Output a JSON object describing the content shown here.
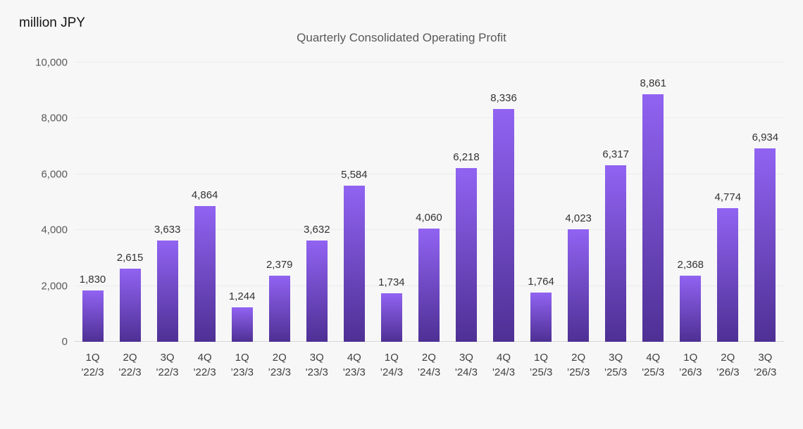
{
  "unit_label": "million JPY",
  "chart_data": {
    "type": "bar",
    "title": "Quarterly Consolidated Operating Profit",
    "ylabel": "million JPY",
    "xlabel": "",
    "ylim": [
      0,
      10000
    ],
    "ytick_interval": 2000,
    "yticks": [
      {
        "value": 0,
        "label": "0"
      },
      {
        "value": 2000,
        "label": "2,000"
      },
      {
        "value": 4000,
        "label": "4,000"
      },
      {
        "value": 6000,
        "label": "6,000"
      },
      {
        "value": 8000,
        "label": "8,000"
      },
      {
        "value": 10000,
        "label": "10,000"
      }
    ],
    "grid": "horizontal",
    "legend": "none",
    "bars": [
      {
        "quarter": "1Q",
        "year": "'22/3",
        "value": 1830,
        "label": "1,830"
      },
      {
        "quarter": "2Q",
        "year": "'22/3",
        "value": 2615,
        "label": "2,615"
      },
      {
        "quarter": "3Q",
        "year": "'22/3",
        "value": 3633,
        "label": "3,633"
      },
      {
        "quarter": "4Q",
        "year": "'22/3",
        "value": 4864,
        "label": "4,864"
      },
      {
        "quarter": "1Q",
        "year": "’23/3",
        "value": 1244,
        "label": "1,244"
      },
      {
        "quarter": "2Q",
        "year": "’23/3",
        "value": 2379,
        "label": "2,379"
      },
      {
        "quarter": "3Q",
        "year": "'23/3",
        "value": 3632,
        "label": "3,632"
      },
      {
        "quarter": "4Q",
        "year": "'23/3",
        "value": 5584,
        "label": "5,584"
      },
      {
        "quarter": "1Q",
        "year": "’24/3",
        "value": 1734,
        "label": "1,734"
      },
      {
        "quarter": "2Q",
        "year": "’24/3",
        "value": 4060,
        "label": "4,060"
      },
      {
        "quarter": "3Q",
        "year": "'24/3",
        "value": 6218,
        "label": "6,218"
      },
      {
        "quarter": "4Q",
        "year": "'24/3",
        "value": 8336,
        "label": "8,336"
      },
      {
        "quarter": "1Q",
        "year": "’25/3",
        "value": 1764,
        "label": "1,764"
      },
      {
        "quarter": "2Q",
        "year": "’25/3",
        "value": 4023,
        "label": "4,023"
      },
      {
        "quarter": "3Q",
        "year": "'25/3",
        "value": 6317,
        "label": "6,317"
      },
      {
        "quarter": "4Q",
        "year": "'25/3",
        "value": 8861,
        "label": "8,861"
      },
      {
        "quarter": "1Q",
        "year": "’26/3",
        "value": 2368,
        "label": "2,368"
      },
      {
        "quarter": "2Q",
        "year": "’26/3",
        "value": 4774,
        "label": "4,774"
      },
      {
        "quarter": "3Q",
        "year": "'26/3",
        "value": 6934,
        "label": "6,934"
      }
    ],
    "colors": {
      "background": "#f7f7f7",
      "bar_gradient_top": "#9163f2",
      "bar_gradient_bottom": "#4e3094",
      "gridline": "#ececec",
      "baseline": "#d7d7d7",
      "title_text": "#595959",
      "axis_text": "#595959",
      "value_label_text": "#333333",
      "x_label_text": "#3f3f3f"
    }
  }
}
